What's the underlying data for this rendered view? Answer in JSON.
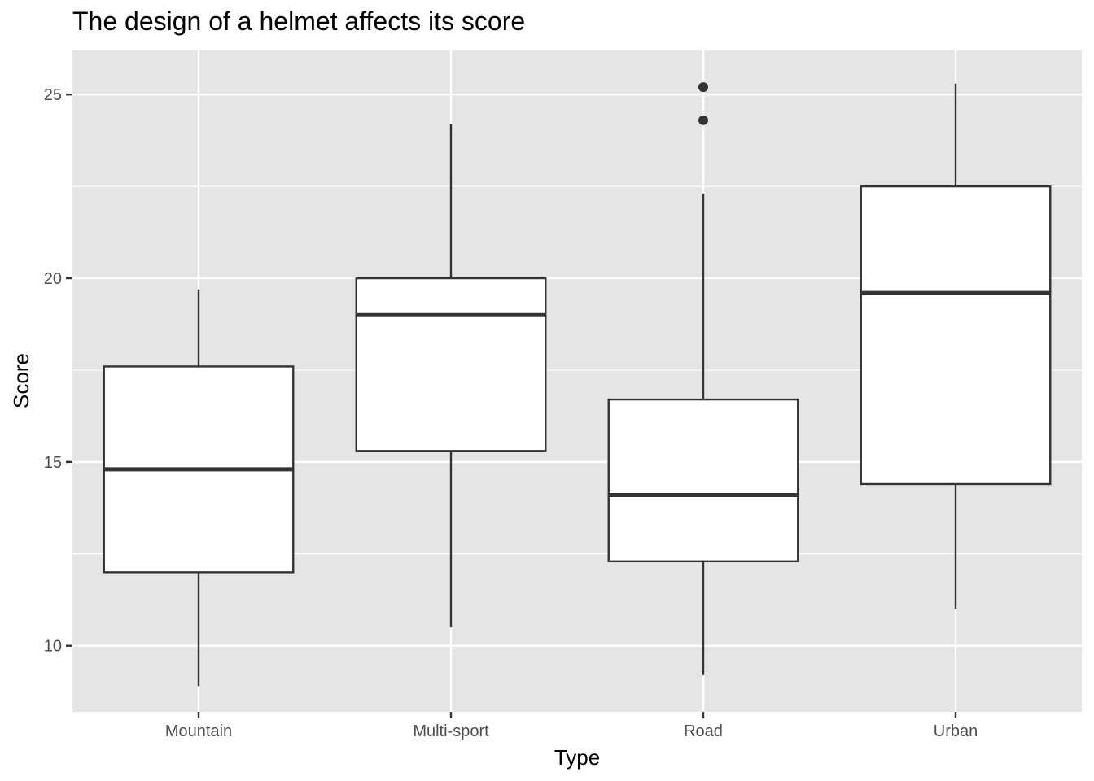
{
  "chart_data": {
    "type": "boxplot",
    "title": "The design of a helmet affects its score",
    "xlabel": "Type",
    "ylabel": "Score",
    "ylim": [
      8.2,
      26.2
    ],
    "yticks": [
      10,
      15,
      20,
      25
    ],
    "ytick_labels": [
      "10",
      "15",
      "20",
      "25"
    ],
    "grid": true,
    "categories": [
      "Mountain",
      "Multi-sport",
      "Road",
      "Urban"
    ],
    "boxes": [
      {
        "category": "Mountain",
        "whisker_low": 8.9,
        "q1": 12.0,
        "median": 14.8,
        "q3": 17.6,
        "whisker_high": 19.7,
        "outliers": []
      },
      {
        "category": "Multi-sport",
        "whisker_low": 10.5,
        "q1": 15.3,
        "median": 19.0,
        "q3": 20.0,
        "whisker_high": 24.2,
        "outliers": []
      },
      {
        "category": "Road",
        "whisker_low": 9.2,
        "q1": 12.3,
        "median": 14.1,
        "q3": 16.7,
        "whisker_high": 22.3,
        "outliers": [
          24.3,
          25.2
        ]
      },
      {
        "category": "Urban",
        "whisker_low": 11.0,
        "q1": 14.4,
        "median": 19.6,
        "q3": 22.5,
        "whisker_high": 25.3,
        "outliers": []
      }
    ],
    "colors": {
      "panel": "#e5e5e5",
      "grid": "#ffffff",
      "box_fill": "#ffffff",
      "box_line": "#333333"
    }
  }
}
